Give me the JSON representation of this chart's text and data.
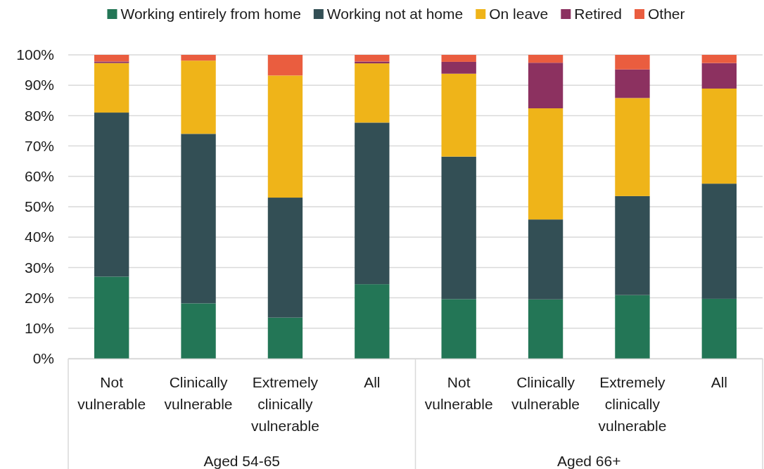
{
  "chart_data": {
    "type": "bar",
    "stacked": true,
    "categories": [
      "Not vulnerable",
      "Clinically vulnerable",
      "Extremely clinically vulnerable",
      "All",
      "Not vulnerable",
      "Clinically vulnerable",
      "Extremely clinically vulnerable",
      "All"
    ],
    "series": [
      {
        "name": "Working entirely from home",
        "color": "#237656",
        "values": [
          27.0,
          18.2,
          13.5,
          24.5,
          19.6,
          19.5,
          20.9,
          19.7
        ]
      },
      {
        "name": "Working not at home",
        "color": "#334f55",
        "values": [
          54.0,
          55.8,
          39.5,
          53.2,
          46.9,
          26.3,
          32.6,
          37.9
        ]
      },
      {
        "name": "On leave",
        "color": "#efb419",
        "values": [
          16.3,
          24.1,
          40.2,
          19.5,
          27.3,
          36.6,
          32.3,
          31.3
        ]
      },
      {
        "name": "Retired",
        "color": "#8c3160",
        "values": [
          0.5,
          0,
          0,
          0.6,
          3.9,
          15.0,
          9.4,
          8.4
        ]
      },
      {
        "name": "Other",
        "color": "#ea5d3f",
        "values": [
          2.2,
          1.9,
          6.8,
          2.2,
          2.3,
          2.6,
          4.8,
          2.7
        ]
      }
    ],
    "ylim": [
      0,
      100
    ],
    "yticks": [
      {
        "value": 0,
        "label": "0%"
      },
      {
        "value": 10,
        "label": "10%"
      },
      {
        "value": 20,
        "label": "20%"
      },
      {
        "value": 30,
        "label": "30%"
      },
      {
        "value": 40,
        "label": "40%"
      },
      {
        "value": 50,
        "label": "50%"
      },
      {
        "value": 60,
        "label": "60%"
      },
      {
        "value": 70,
        "label": "70%"
      },
      {
        "value": 80,
        "label": "80%"
      },
      {
        "value": 90,
        "label": "90%"
      },
      {
        "value": 100,
        "label": "100%"
      }
    ],
    "annotations": [
      "Aged 54-65",
      "Aged 66+"
    ],
    "grid": "y",
    "legend": "top"
  }
}
